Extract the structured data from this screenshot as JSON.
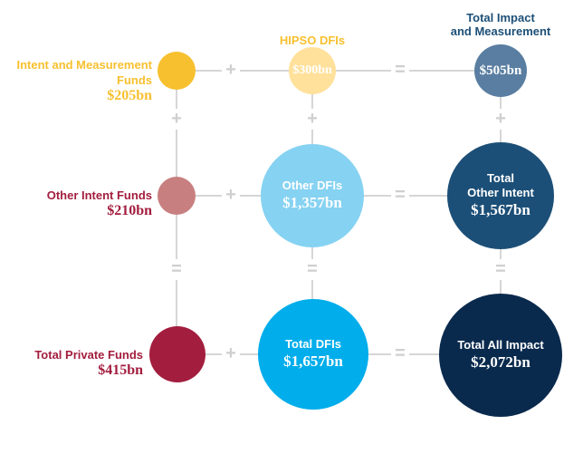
{
  "colors": {
    "yellow": "#f7c02f",
    "pale_yellow": "#ffe19b",
    "pink": "#c87f80",
    "crimson": "#a31d3e",
    "light_blue": "#86d2f2",
    "bright_blue": "#01adeb",
    "slate_blue": "#5a7ea1",
    "steel_blue": "#1c4f77",
    "navy": "#0a2a4d",
    "connector": "#d6d6d6"
  },
  "rows": {
    "intent_measurement": {
      "label": "Intent and Measurement Funds",
      "amount": "$205bn"
    },
    "other_intent": {
      "label": "Other Intent Funds",
      "amount": "$210bn"
    },
    "total_private": {
      "label": "Total Private Funds",
      "amount": "$415bn"
    }
  },
  "columns": {
    "hipso_dfis": {
      "label": "HIPSO DFIs",
      "amount": "$300bn"
    },
    "total_impact_measurement": {
      "label_line1": "Total Impact",
      "label_line2": "and Measurement",
      "amount": "$505bn"
    }
  },
  "bubbles": {
    "other_dfis": {
      "label": "Other DFIs",
      "amount": "$1,357bn"
    },
    "total_other_intent": {
      "label_line1": "Total",
      "label_line2": "Other Intent",
      "amount": "$1,567bn"
    },
    "total_dfis": {
      "label": "Total DFIs",
      "amount": "$1,657bn"
    },
    "total_all_impact": {
      "label": "Total All Impact",
      "amount": "$2,072bn"
    }
  },
  "operators": {
    "plus": "+",
    "equals": "="
  }
}
